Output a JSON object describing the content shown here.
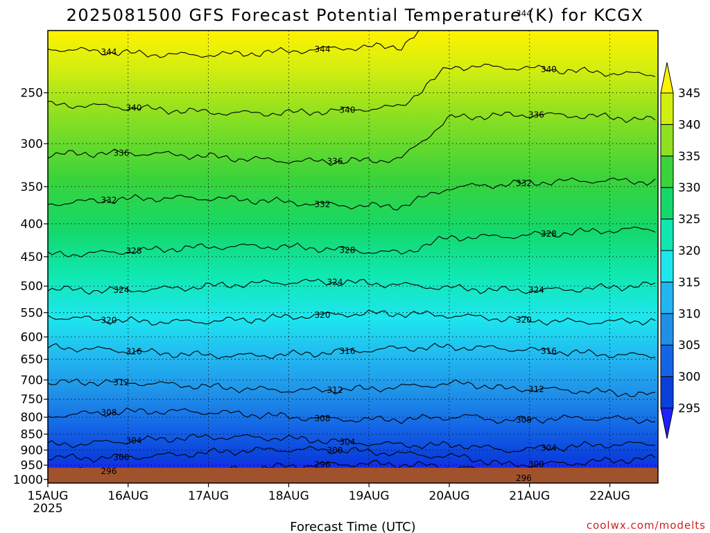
{
  "chart_data": {
    "type": "heatmap",
    "title": "2025081500 GFS Forecast Potential Temperature (K) for KCGX",
    "xlabel": "Forecast Time (UTC)",
    "ylabel": "",
    "credit": "coolwx.com/modelts",
    "x_ticks": [
      "15AUG",
      "16AUG",
      "17AUG",
      "18AUG",
      "19AUG",
      "20AUG",
      "21AUG",
      "22AUG"
    ],
    "x_year": "2025",
    "y_ticks": [
      250,
      300,
      350,
      400,
      450,
      500,
      550,
      600,
      650,
      700,
      750,
      800,
      850,
      900,
      950,
      1000
    ],
    "y_range_hPa": [
      200,
      1013
    ],
    "x_range_days": [
      0,
      7.6
    ],
    "colorbar": {
      "levels": [
        295,
        300,
        305,
        310,
        315,
        320,
        325,
        330,
        335,
        340,
        345
      ],
      "colors": [
        "#2020ff",
        "#0a3fdc",
        "#1465e6",
        "#1f8fe8",
        "#22b5f0",
        "#1ee6ee",
        "#10e8b0",
        "#14d86a",
        "#3ad33a",
        "#8ee020",
        "#d2ee10",
        "#fff200"
      ]
    },
    "isentropes": [
      {
        "theta": 296,
        "base_hPa": 960,
        "label": "296"
      },
      {
        "theta": 300,
        "base_hPa": 912,
        "label": "300"
      },
      {
        "theta": 304,
        "base_hPa": 872,
        "label": "304"
      },
      {
        "theta": 308,
        "base_hPa": 795,
        "label": "308"
      },
      {
        "theta": 312,
        "base_hPa": 716,
        "label": "312"
      },
      {
        "theta": 316,
        "base_hPa": 632,
        "label": "316"
      },
      {
        "theta": 320,
        "base_hPa": 560,
        "label": "320"
      },
      {
        "theta": 324,
        "base_hPa": 500,
        "label": "324"
      },
      {
        "theta": 328,
        "base_hPa": 440,
        "label": "328"
      },
      {
        "theta": 332,
        "base_hPa": 370,
        "label": "332"
      },
      {
        "theta": 336,
        "base_hPa": 315,
        "label": "336"
      },
      {
        "theta": 340,
        "base_hPa": 265,
        "label": "340"
      },
      {
        "theta": 344,
        "base_hPa": 215,
        "label": "344"
      }
    ]
  }
}
